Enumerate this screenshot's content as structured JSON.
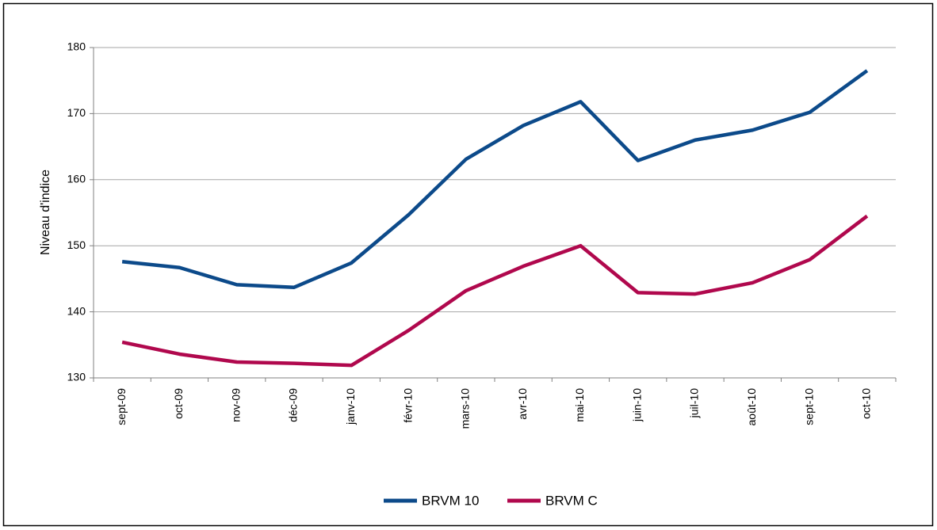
{
  "chart_data": {
    "type": "line",
    "categories": [
      "sept-09",
      "oct-09",
      "nov-09",
      "déc-09",
      "janv-10",
      "févr-10",
      "mars-10",
      "avr-10",
      "mai-10",
      "juin-10",
      "juil-10",
      "août-10",
      "sept-10",
      "oct-10"
    ],
    "series": [
      {
        "name": "BRVM 10",
        "color": "#0c4a8a",
        "values": [
          147.6,
          146.7,
          144.1,
          143.7,
          147.4,
          154.7,
          163.1,
          168.2,
          171.8,
          162.9,
          166.0,
          167.5,
          170.2,
          176.5
        ]
      },
      {
        "name": "BRVM C",
        "color": "#b0084d",
        "values": [
          135.4,
          133.6,
          132.4,
          132.2,
          131.9,
          137.2,
          143.2,
          146.9,
          150.0,
          142.9,
          142.7,
          144.4,
          147.9,
          154.5
        ]
      }
    ],
    "y_label": "Niveau d'indice",
    "ylim": [
      130,
      180
    ],
    "yticks": [
      130,
      140,
      150,
      160,
      170,
      180
    ],
    "grid": true,
    "legend": "bottom"
  }
}
